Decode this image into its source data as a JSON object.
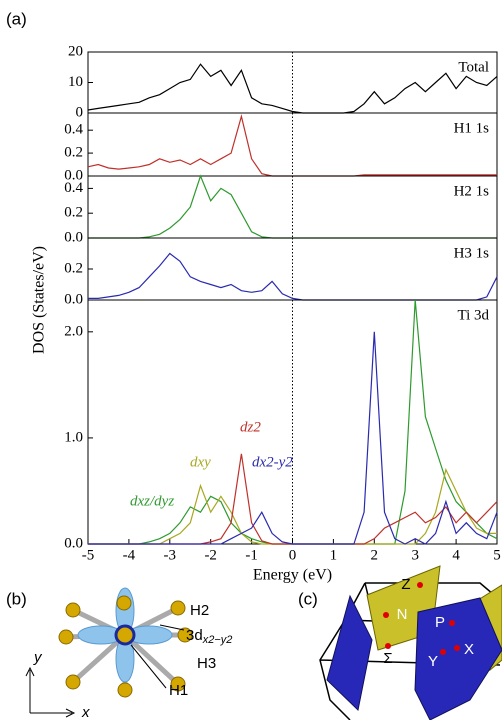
{
  "figure": {
    "label": "(a)",
    "ylabel": "DOS (States/eV)"
  },
  "chart_data": [
    {
      "type": "line",
      "label": "Total",
      "color": "#000000",
      "x": [
        -5,
        -4.75,
        -4.5,
        -4.25,
        -4,
        -3.75,
        -3.5,
        -3.25,
        -3,
        -2.75,
        -2.5,
        -2.25,
        -2,
        -1.75,
        -1.5,
        -1.25,
        -1,
        -0.75,
        -0.5,
        -0.25,
        0,
        0.25,
        0.5,
        0.75,
        1,
        1.25,
        1.5,
        1.75,
        2,
        2.25,
        2.5,
        2.75,
        3,
        3.25,
        3.5,
        3.75,
        4,
        4.25,
        4.5,
        4.75,
        5
      ],
      "values": [
        1,
        1.5,
        2,
        2.5,
        3,
        3.5,
        5,
        6,
        8,
        10,
        11,
        16,
        12,
        14,
        9,
        14,
        5,
        3,
        2.5,
        1.5,
        0.5,
        0,
        0,
        0,
        0,
        0,
        0.5,
        3,
        7,
        3,
        5,
        8,
        10,
        7,
        10,
        13,
        8,
        12,
        10,
        9,
        12
      ],
      "xlim": [
        -5,
        5
      ],
      "ylim": [
        0,
        20
      ],
      "yticks": [
        0,
        10,
        20
      ]
    },
    {
      "type": "line",
      "label": "H1 1s",
      "color": "#c0302a",
      "x": [
        -5,
        -4.75,
        -4.5,
        -4.25,
        -4,
        -3.75,
        -3.5,
        -3.25,
        -3,
        -2.75,
        -2.5,
        -2.25,
        -2,
        -1.75,
        -1.5,
        -1.25,
        -1,
        -0.75,
        -0.5,
        -0.25,
        0,
        0.25,
        0.5,
        0.75,
        1,
        1.25,
        1.5,
        1.75,
        2,
        2.25,
        2.5,
        2.75,
        3,
        3.25,
        3.5,
        3.75,
        4,
        4.25,
        4.5,
        4.75,
        5
      ],
      "values": [
        0.08,
        0.1,
        0.07,
        0.06,
        0.07,
        0.08,
        0.1,
        0.15,
        0.12,
        0.14,
        0.1,
        0.15,
        0.1,
        0.15,
        0.2,
        0.52,
        0.15,
        0.02,
        0,
        0,
        0,
        0,
        0,
        0,
        0,
        0,
        0,
        0.01,
        0.01,
        0.01,
        0.01,
        0.01,
        0.01,
        0.01,
        0.01,
        0.01,
        0.01,
        0.01,
        0.01,
        0.01,
        0.01
      ],
      "xlim": [
        -5,
        5
      ],
      "ylim": [
        0,
        0.55
      ],
      "yticks": [
        {
          "value": 0,
          "label": "0.0"
        },
        {
          "value": 0.2,
          "label": "0.2"
        },
        {
          "value": 0.4,
          "label": "0.4"
        }
      ]
    },
    {
      "type": "line",
      "label": "H2 1s",
      "color": "#2e9a2e",
      "x": [
        -5,
        -4.75,
        -4.5,
        -4.25,
        -4,
        -3.75,
        -3.5,
        -3.25,
        -3,
        -2.75,
        -2.5,
        -2.25,
        -2,
        -1.75,
        -1.5,
        -1.25,
        -1,
        -0.75,
        -0.5,
        -0.25,
        0,
        0.25,
        0.5,
        0.75,
        1,
        1.25,
        1.5,
        1.75,
        2,
        2.25,
        2.5,
        2.75,
        3,
        3.25,
        3.5,
        3.75,
        4,
        4.25,
        4.5,
        4.75,
        5
      ],
      "values": [
        0,
        0,
        0,
        0,
        0,
        0,
        0.01,
        0.03,
        0.08,
        0.15,
        0.25,
        0.5,
        0.3,
        0.4,
        0.35,
        0.2,
        0.05,
        0.01,
        0,
        0,
        0,
        0,
        0,
        0,
        0,
        0,
        0,
        0,
        0,
        0,
        0,
        0,
        0,
        0,
        0,
        0,
        0,
        0,
        0,
        0,
        0
      ],
      "xlim": [
        -5,
        5
      ],
      "ylim": [
        0,
        0.5
      ],
      "yticks": [
        {
          "value": 0,
          "label": "0.0"
        },
        {
          "value": 0.2,
          "label": "0.2"
        },
        {
          "value": 0.4,
          "label": "0.4"
        }
      ]
    },
    {
      "type": "line",
      "label": "H3 1s",
      "color": "#2a2ab0",
      "x": [
        -5,
        -4.75,
        -4.5,
        -4.25,
        -4,
        -3.75,
        -3.5,
        -3.25,
        -3,
        -2.75,
        -2.5,
        -2.25,
        -2,
        -1.75,
        -1.5,
        -1.25,
        -1,
        -0.75,
        -0.5,
        -0.25,
        0,
        0.25,
        0.5,
        0.75,
        1,
        1.25,
        1.5,
        1.75,
        2,
        2.25,
        2.5,
        2.75,
        3,
        3.25,
        3.5,
        3.75,
        4,
        4.25,
        4.5,
        4.75,
        5
      ],
      "values": [
        0.01,
        0.01,
        0.02,
        0.03,
        0.05,
        0.08,
        0.15,
        0.22,
        0.3,
        0.25,
        0.15,
        0.12,
        0.1,
        0.08,
        0.1,
        0.06,
        0.05,
        0.06,
        0.12,
        0.04,
        0.01,
        0,
        0,
        0,
        0,
        0,
        0,
        0,
        0,
        0,
        0,
        0,
        0,
        0,
        0,
        0,
        0,
        0,
        0,
        0.02,
        0.15
      ],
      "xlim": [
        -5,
        5
      ],
      "ylim": [
        0,
        0.4
      ],
      "yticks": [
        {
          "value": 0,
          "label": "0.0"
        },
        {
          "value": 0.2,
          "label": "0.2"
        }
      ]
    },
    {
      "type": "line",
      "label": "Ti 3d",
      "xlabel": "Energy (eV)",
      "x": [
        -5,
        -4.75,
        -4.5,
        -4.25,
        -4,
        -3.75,
        -3.5,
        -3.25,
        -3,
        -2.75,
        -2.5,
        -2.25,
        -2,
        -1.75,
        -1.5,
        -1.25,
        -1,
        -0.75,
        -0.5,
        -0.25,
        0,
        0.25,
        0.5,
        0.75,
        1,
        1.25,
        1.5,
        1.75,
        2,
        2.25,
        2.5,
        2.75,
        3,
        3.25,
        3.5,
        3.75,
        4,
        4.25,
        4.5,
        4.75,
        5
      ],
      "series": [
        {
          "name": "dxz/dyz",
          "color": "#2e9a2e",
          "values": [
            0,
            0,
            0,
            0,
            0,
            0,
            0.02,
            0.05,
            0.1,
            0.2,
            0.35,
            0.3,
            0.45,
            0.4,
            0.2,
            0.1,
            0.05,
            0.02,
            0,
            0,
            0,
            0,
            0,
            0,
            0,
            0,
            0,
            0,
            0,
            0,
            0,
            0.5,
            2.3,
            1.2,
            0.9,
            0.6,
            0.4,
            0.3,
            0.2,
            0.1,
            0.05
          ]
        },
        {
          "name": "dxy",
          "color": "#a8a820",
          "values": [
            0,
            0,
            0,
            0,
            0,
            0,
            0,
            0,
            0.05,
            0.1,
            0.2,
            0.55,
            0.3,
            0.45,
            0.3,
            0.1,
            0.02,
            0,
            0,
            0,
            0,
            0,
            0,
            0,
            0,
            0,
            0,
            0,
            0,
            0,
            0,
            0,
            0,
            0.1,
            0.3,
            0.7,
            0.5,
            0.3,
            0.15,
            0.1,
            0.1
          ]
        },
        {
          "name": "dz2",
          "color": "#c0302a",
          "values": [
            0,
            0,
            0,
            0,
            0,
            0,
            0,
            0,
            0,
            0,
            0,
            0,
            0.02,
            0.05,
            0.2,
            0.85,
            0.2,
            0.03,
            0,
            0,
            0,
            0,
            0,
            0,
            0,
            0,
            0,
            0,
            0.05,
            0.15,
            0.2,
            0.25,
            0.3,
            0.2,
            0.25,
            0.35,
            0.2,
            0.3,
            0.2,
            0.3,
            0.4
          ]
        },
        {
          "name": "dx2-y2",
          "color": "#2a2ab0",
          "values": [
            0,
            0,
            0,
            0,
            0,
            0,
            0,
            0,
            0,
            0,
            0,
            0,
            0,
            0,
            0.05,
            0.1,
            0.15,
            0.3,
            0.1,
            0.02,
            0,
            0,
            0,
            0,
            0,
            0,
            0,
            0.3,
            2.0,
            0.3,
            0.05,
            0,
            0.05,
            0,
            0.1,
            0.4,
            0.1,
            0.2,
            0.1,
            0.05,
            0.3
          ]
        }
      ],
      "xlim": [
        -5,
        5
      ],
      "xticks": [
        -5,
        -4,
        -3,
        -2,
        -1,
        0,
        1,
        2,
        3,
        4,
        5
      ],
      "ylim": [
        0,
        2.3
      ],
      "yticks": [
        {
          "value": 0,
          "label": "0.0"
        },
        {
          "value": 1,
          "label": "1.0"
        },
        {
          "value": 2,
          "label": "2.0"
        }
      ]
    }
  ],
  "panel_b": {
    "label": "(b)",
    "h2": "H2",
    "orbital": "3d",
    "orbital_sub": "x2−y2",
    "h3": "H3",
    "h1": "H1",
    "y_axis": "y",
    "x_axis": "x"
  },
  "panel_c": {
    "label": "(c)",
    "points": [
      "Z",
      "N",
      "P",
      "Σ",
      "Y",
      "X"
    ]
  }
}
